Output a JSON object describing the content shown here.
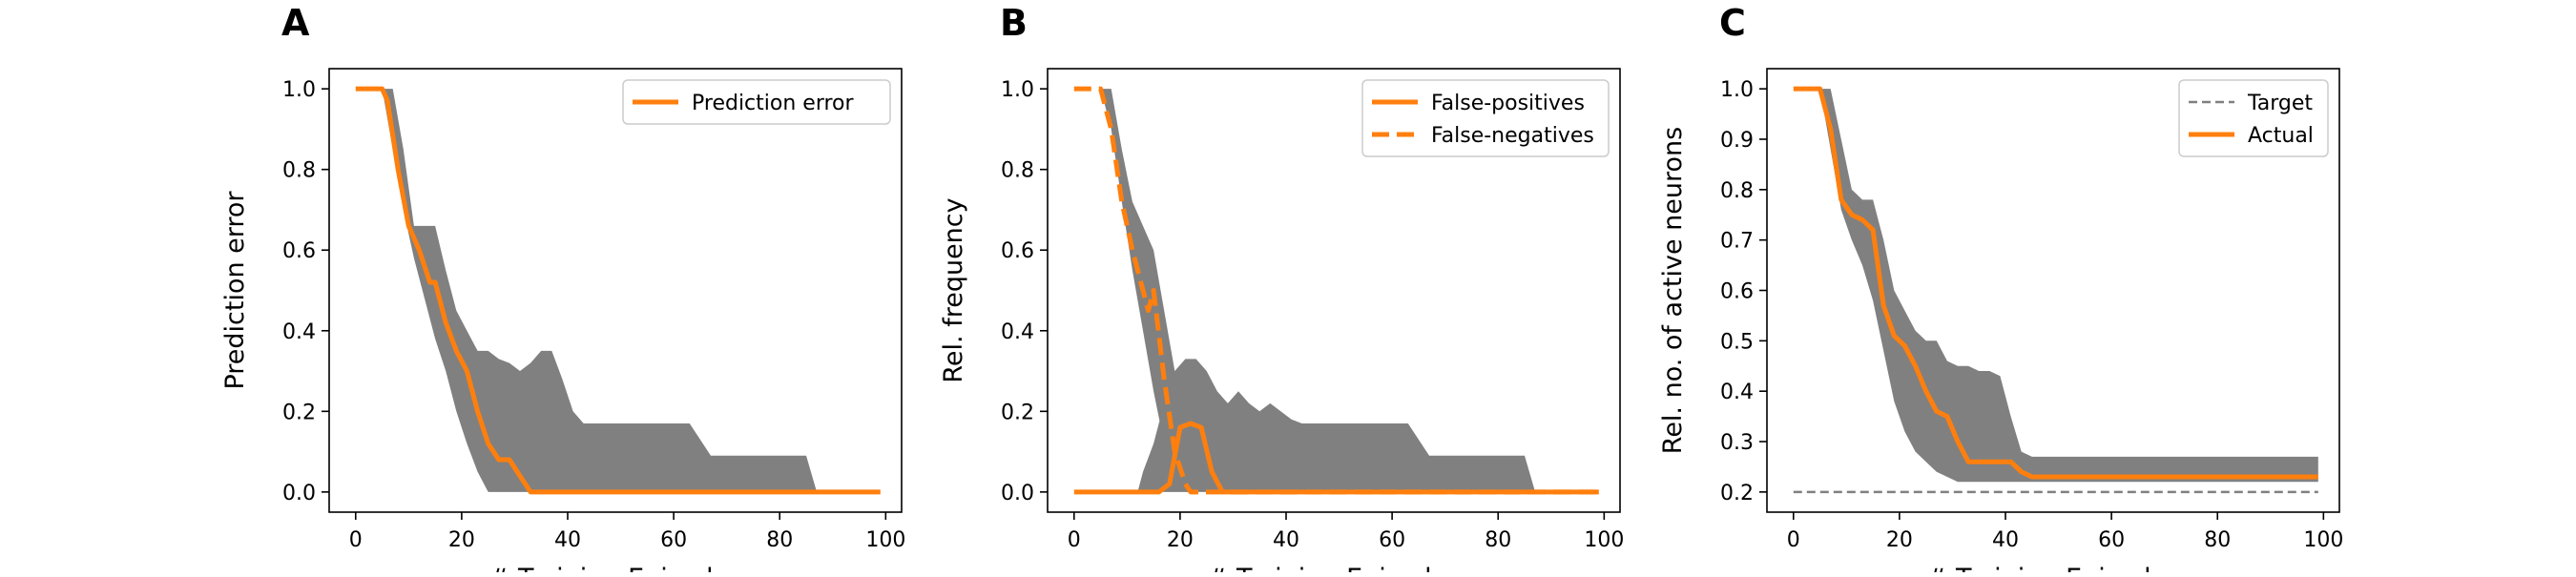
{
  "colors": {
    "orange": "#ff7f0e",
    "band": "#808080",
    "target": "#808080"
  },
  "chart_data": [
    {
      "panel": "A",
      "type": "line",
      "xlabel": "# Training Episodes",
      "ylabel": "Prediction error",
      "xlim": [
        -5,
        103
      ],
      "ylim": [
        -0.05,
        1.05
      ],
      "xticks": [
        0,
        20,
        40,
        60,
        80,
        100
      ],
      "yticks": [
        0.0,
        0.2,
        0.4,
        0.6,
        0.8,
        1.0
      ],
      "yticklabels": [
        "0.0",
        "0.2",
        "0.4",
        "0.6",
        "0.8",
        "1.0"
      ],
      "legend": "top-right",
      "band": {
        "x": [
          0,
          5,
          7,
          9,
          11,
          13,
          15,
          17,
          19,
          21,
          23,
          25,
          27,
          29,
          31,
          33,
          35,
          37,
          39,
          41,
          43,
          63,
          67,
          85,
          87,
          99
        ],
        "lower": [
          1.0,
          1.0,
          0.85,
          0.7,
          0.58,
          0.48,
          0.38,
          0.3,
          0.2,
          0.12,
          0.05,
          0.0,
          0.0,
          0.0,
          0.0,
          0.0,
          0.0,
          0.0,
          0.0,
          0.0,
          0.0,
          0.0,
          0.0,
          0.0,
          0.0,
          0.0
        ],
        "upper": [
          1.0,
          1.0,
          1.0,
          0.85,
          0.66,
          0.66,
          0.66,
          0.55,
          0.45,
          0.4,
          0.35,
          0.35,
          0.33,
          0.32,
          0.3,
          0.32,
          0.35,
          0.35,
          0.28,
          0.2,
          0.17,
          0.17,
          0.09,
          0.09,
          0.0,
          0.0
        ]
      },
      "series": [
        {
          "name": "Prediction error",
          "style": "solid",
          "color": "#ff7f0e",
          "x": [
            0,
            5,
            6,
            8,
            10,
            12,
            14,
            15,
            17,
            19,
            21,
            23,
            25,
            27,
            29,
            31,
            33,
            99
          ],
          "y": [
            1.0,
            1.0,
            0.97,
            0.8,
            0.66,
            0.6,
            0.52,
            0.52,
            0.42,
            0.35,
            0.3,
            0.2,
            0.12,
            0.08,
            0.08,
            0.04,
            0.0,
            0.0
          ]
        }
      ]
    },
    {
      "panel": "B",
      "type": "line",
      "xlabel": "# Training Episodes",
      "ylabel": "Rel. frequency",
      "xlim": [
        -5,
        103
      ],
      "ylim": [
        -0.05,
        1.05
      ],
      "xticks": [
        0,
        20,
        40,
        60,
        80,
        100
      ],
      "yticks": [
        0.0,
        0.2,
        0.4,
        0.6,
        0.8,
        1.0
      ],
      "yticklabels": [
        "0.0",
        "0.2",
        "0.4",
        "0.6",
        "0.8",
        "1.0"
      ],
      "legend": "top-right",
      "band": {
        "x": [
          0,
          12,
          13,
          15,
          17,
          19,
          21,
          23,
          25,
          27,
          29,
          31,
          33,
          35,
          37,
          39,
          41,
          43,
          63,
          67,
          85,
          87,
          99
        ],
        "lower": [
          0.0,
          0.0,
          0.0,
          0.0,
          0.0,
          0.0,
          0.0,
          0.0,
          0.0,
          0.0,
          0.0,
          0.0,
          0.0,
          0.0,
          0.0,
          0.0,
          0.0,
          0.0,
          0.0,
          0.0,
          0.0,
          0.0,
          0.0
        ],
        "upper": [
          0.0,
          0.0,
          0.05,
          0.12,
          0.22,
          0.3,
          0.33,
          0.33,
          0.3,
          0.25,
          0.22,
          0.25,
          0.22,
          0.2,
          0.22,
          0.2,
          0.18,
          0.17,
          0.17,
          0.09,
          0.09,
          0.0,
          0.0
        ]
      },
      "band2": {
        "x": [
          5,
          7,
          9,
          11,
          13,
          15,
          17,
          19,
          21,
          23
        ],
        "lower": [
          1.0,
          0.9,
          0.72,
          0.55,
          0.4,
          0.25,
          0.12,
          0.05,
          0.0,
          0.0
        ],
        "upper": [
          1.0,
          1.0,
          0.85,
          0.72,
          0.66,
          0.6,
          0.45,
          0.3,
          0.18,
          0.0
        ]
      },
      "series": [
        {
          "name": "False-positives",
          "style": "solid",
          "color": "#ff7f0e",
          "x": [
            0,
            16,
            18,
            20,
            22,
            24,
            26,
            28,
            99
          ],
          "y": [
            0.0,
            0.0,
            0.02,
            0.16,
            0.17,
            0.16,
            0.05,
            0.0,
            0.0
          ]
        },
        {
          "name": "False-negatives",
          "style": "dashed",
          "color": "#ff7f0e",
          "x": [
            0,
            5,
            7,
            9,
            11,
            13,
            14,
            15,
            17,
            19,
            21,
            22,
            99
          ],
          "y": [
            1.0,
            1.0,
            0.9,
            0.72,
            0.6,
            0.5,
            0.45,
            0.5,
            0.28,
            0.1,
            0.02,
            0.0,
            0.0
          ]
        }
      ]
    },
    {
      "panel": "C",
      "type": "line",
      "xlabel": "# Training Episodes",
      "ylabel": "Rel. no. of active neurons",
      "xlim": [
        -5,
        103
      ],
      "ylim": [
        0.16,
        1.04
      ],
      "xticks": [
        0,
        20,
        40,
        60,
        80,
        100
      ],
      "yticks": [
        0.2,
        0.3,
        0.4,
        0.5,
        0.6,
        0.7,
        0.8,
        0.9,
        1.0
      ],
      "yticklabels": [
        "0.2",
        "0.3",
        "0.4",
        "0.5",
        "0.6",
        "0.7",
        "0.8",
        "0.9",
        "1.0"
      ],
      "legend": "top-right",
      "band": {
        "x": [
          0,
          5,
          7,
          9,
          11,
          13,
          15,
          17,
          19,
          21,
          23,
          25,
          27,
          29,
          31,
          33,
          35,
          37,
          39,
          41,
          43,
          45,
          99
        ],
        "lower": [
          1.0,
          1.0,
          0.88,
          0.76,
          0.7,
          0.65,
          0.58,
          0.48,
          0.38,
          0.32,
          0.28,
          0.26,
          0.24,
          0.23,
          0.22,
          0.22,
          0.22,
          0.22,
          0.22,
          0.22,
          0.22,
          0.22,
          0.22
        ],
        "upper": [
          1.0,
          1.0,
          1.0,
          0.9,
          0.8,
          0.78,
          0.78,
          0.7,
          0.6,
          0.56,
          0.52,
          0.5,
          0.5,
          0.46,
          0.45,
          0.45,
          0.44,
          0.44,
          0.43,
          0.35,
          0.28,
          0.27,
          0.27
        ]
      },
      "series": [
        {
          "name": "Target",
          "style": "dashed",
          "color": "#808080",
          "x": [
            0,
            99
          ],
          "y": [
            0.2,
            0.2
          ]
        },
        {
          "name": "Actual",
          "style": "solid",
          "color": "#ff7f0e",
          "x": [
            0,
            5,
            7,
            9,
            11,
            13,
            15,
            17,
            19,
            21,
            23,
            25,
            27,
            29,
            31,
            33,
            35,
            37,
            39,
            41,
            43,
            45,
            99
          ],
          "y": [
            1.0,
            1.0,
            0.92,
            0.78,
            0.75,
            0.74,
            0.72,
            0.57,
            0.51,
            0.49,
            0.45,
            0.4,
            0.36,
            0.35,
            0.3,
            0.26,
            0.26,
            0.26,
            0.26,
            0.26,
            0.24,
            0.23,
            0.23
          ]
        }
      ]
    }
  ]
}
